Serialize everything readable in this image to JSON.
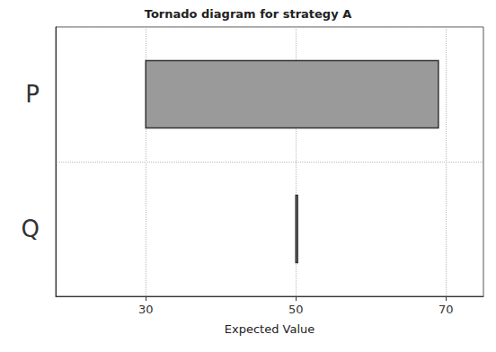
{
  "chart_data": {
    "type": "bar",
    "orientation": "horizontal",
    "title": "Tornado diagram for strategy A",
    "x_label": "Expected Value",
    "categories": [
      "P",
      "Q"
    ],
    "values": [
      [
        30,
        69
      ],
      [
        50,
        50
      ]
    ],
    "color": "#9a9a9a",
    "xlim": [
      18,
      75
    ],
    "xticks": [
      30,
      50,
      70
    ],
    "grid": true
  }
}
